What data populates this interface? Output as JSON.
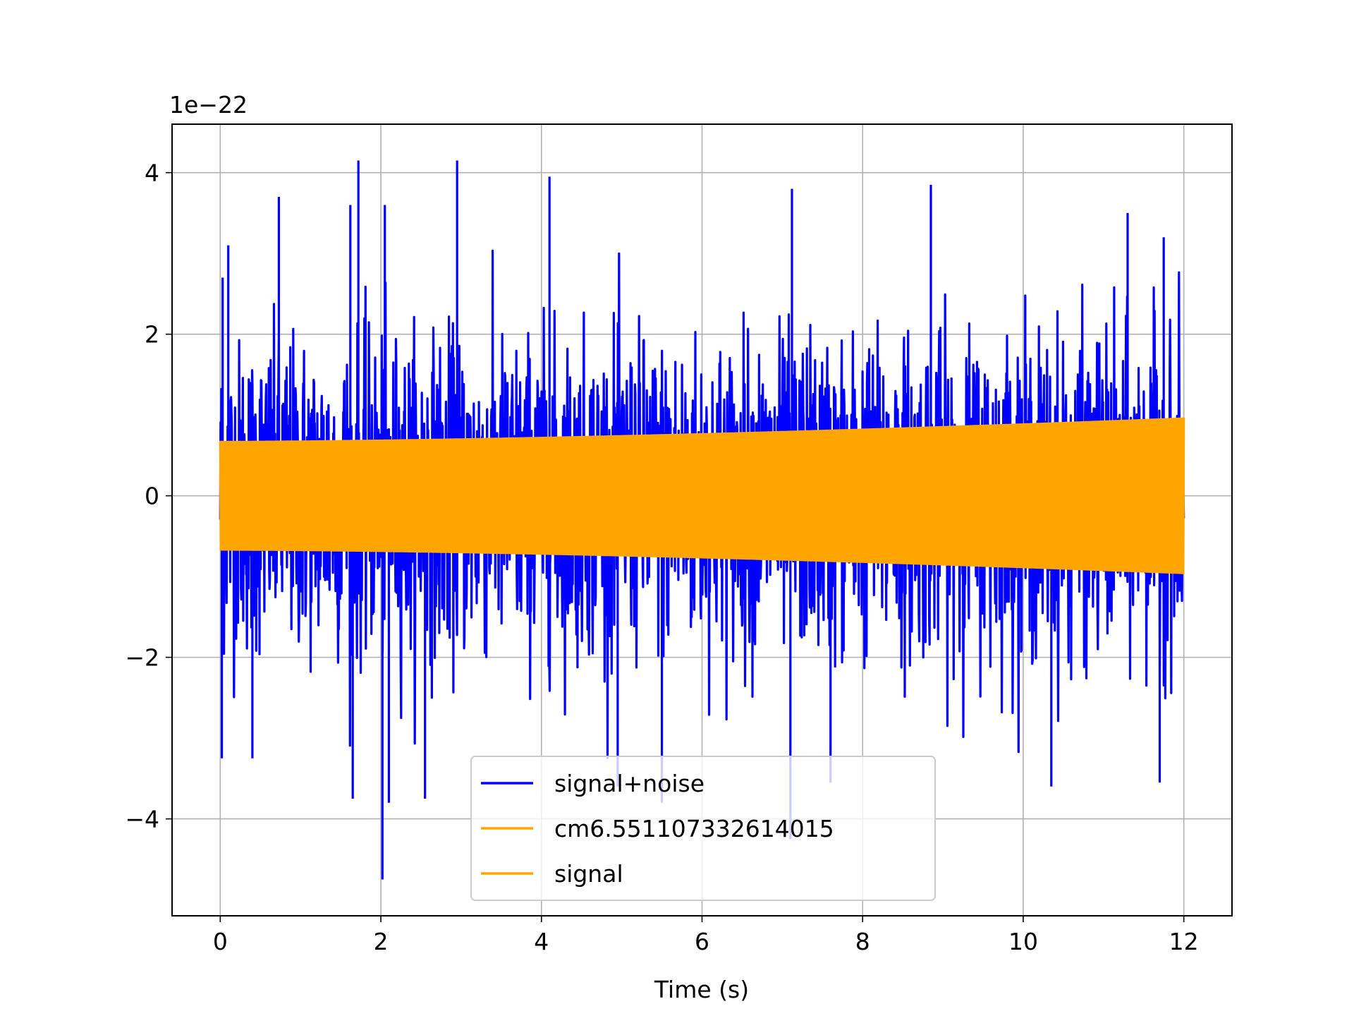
{
  "chart_data": {
    "type": "line",
    "title": "",
    "xlabel": "Time (s)",
    "ylabel": "",
    "offset_text": "1e−22",
    "x_ticks": [
      0,
      2,
      4,
      6,
      8,
      10,
      12
    ],
    "x_tick_labels": [
      "0",
      "2",
      "4",
      "6",
      "8",
      "10",
      "12"
    ],
    "y_ticks": [
      -4,
      -2,
      0,
      2,
      4
    ],
    "y_tick_labels": [
      "−4",
      "−2",
      "0",
      "2",
      "4"
    ],
    "xlim": [
      -0.6,
      12.6
    ],
    "ylim": [
      -5.2,
      4.6
    ],
    "y_scale_factor": 1e-22,
    "grid": true,
    "legend_position": "lower-center",
    "series": [
      {
        "name": "signal+noise",
        "color": "#0000ff",
        "x_range": [
          0,
          12
        ],
        "description_values": {
          "max": 4.15,
          "min": -4.75,
          "typical_upper": 2.6,
          "typical_lower": -2.6
        },
        "peaks": [
          {
            "x": 0.03,
            "y": 2.7
          },
          {
            "x": 0.1,
            "y": 3.1
          },
          {
            "x": 0.73,
            "y": 3.7
          },
          {
            "x": 1.62,
            "y": 3.6
          },
          {
            "x": 1.72,
            "y": 4.15
          },
          {
            "x": 2.05,
            "y": 3.6
          },
          {
            "x": 2.95,
            "y": 4.15
          },
          {
            "x": 4.1,
            "y": 3.95
          },
          {
            "x": 7.12,
            "y": 3.8
          },
          {
            "x": 8.85,
            "y": 3.85
          },
          {
            "x": 11.3,
            "y": 3.5
          },
          {
            "x": 11.75,
            "y": 3.2
          }
        ],
        "troughs": [
          {
            "x": 0.02,
            "y": -3.25
          },
          {
            "x": 0.4,
            "y": -3.25
          },
          {
            "x": 1.65,
            "y": -3.75
          },
          {
            "x": 2.02,
            "y": -4.75
          },
          {
            "x": 2.1,
            "y": -3.8
          },
          {
            "x": 2.55,
            "y": -3.75
          },
          {
            "x": 4.95,
            "y": -3.6
          },
          {
            "x": 5.5,
            "y": -3.8
          },
          {
            "x": 7.1,
            "y": -4.25
          },
          {
            "x": 7.6,
            "y": -3.55
          },
          {
            "x": 10.35,
            "y": -3.6
          },
          {
            "x": 11.7,
            "y": -3.55
          }
        ]
      },
      {
        "name": "cm6.551107332614015",
        "color": "#ffa500",
        "x_range": [
          0,
          12
        ],
        "envelope_start": 0.68,
        "envelope_end": 0.97
      },
      {
        "name": "signal",
        "color": "#ffa500",
        "x_range": [
          0,
          12
        ],
        "envelope_start": 0.68,
        "envelope_end": 0.97
      }
    ]
  }
}
